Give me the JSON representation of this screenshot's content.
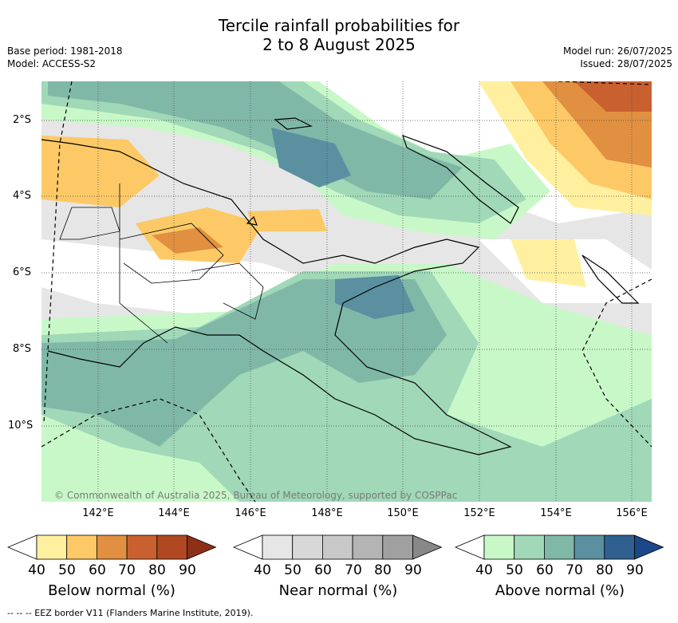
{
  "title_line1": "Tercile rainfall probabilities for",
  "title_line2": "2 to 8 August 2025",
  "meta_left": {
    "base_period": "Base period: 1981-2018",
    "model": "Model: ACCESS-S2"
  },
  "meta_right": {
    "model_run": "Model run: 26/07/2025",
    "issued": "Issued: 28/07/2025"
  },
  "lat_labels": [
    "2°S",
    "4°S",
    "6°S",
    "8°S",
    "10°S"
  ],
  "lon_labels": [
    "142°E",
    "144°E",
    "146°E",
    "148°E",
    "150°E",
    "152°E",
    "154°E",
    "156°E"
  ],
  "copyright": "© Commonwealth of Australia 2025, Bureau of Meteorology, supported by COSPPac",
  "footnote": "-- -- -- EEZ border V11 (Flanders Marine Institute, 2019).",
  "colorbars": [
    {
      "title": "Below normal (%)",
      "ticks": [
        "40",
        "50",
        "60",
        "70",
        "80",
        "90"
      ],
      "colors": [
        "#fff0a0",
        "#fdc966",
        "#e09040",
        "#c96030",
        "#b04824",
        "#8c3018"
      ]
    },
    {
      "title": "Near normal (%)",
      "ticks": [
        "40",
        "50",
        "60",
        "70",
        "80",
        "90"
      ],
      "colors": [
        "#e6e6e6",
        "#d8d8d8",
        "#c8c8c8",
        "#b4b4b4",
        "#a0a0a0",
        "#888888"
      ]
    },
    {
      "title": "Above normal (%)",
      "ticks": [
        "40",
        "50",
        "60",
        "70",
        "80",
        "90"
      ],
      "colors": [
        "#c8f8c8",
        "#a0d8b8",
        "#80b8a8",
        "#5a90a0",
        "#306090",
        "#1a4888"
      ]
    }
  ]
}
